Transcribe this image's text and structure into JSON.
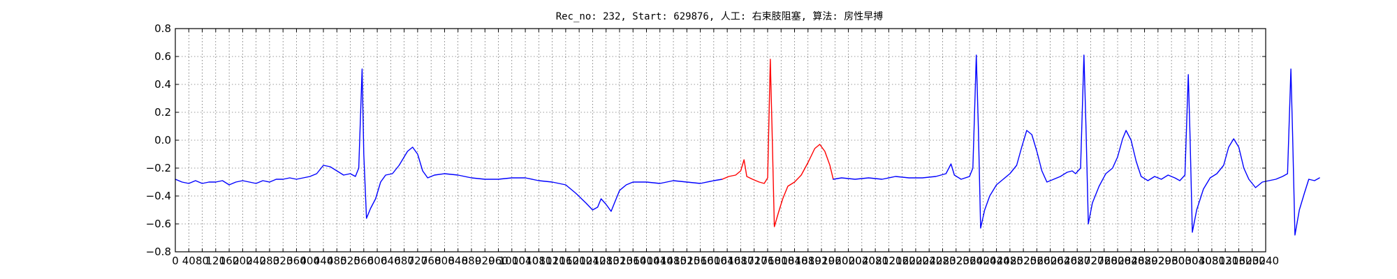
{
  "chart_data": {
    "type": "line",
    "title": "Rec_no: 232, Start: 629876, 人工: 右束肢阻塞, 算法: 房性早搏",
    "xlabel": "",
    "ylabel": "",
    "xlim": [
      0,
      3240
    ],
    "ylim": [
      -0.8,
      0.8
    ],
    "grid": true,
    "x_ticks": [
      0,
      40,
      80,
      120,
      160,
      200,
      240,
      280,
      320,
      360,
      400,
      440,
      480,
      520,
      560,
      600,
      640,
      680,
      720,
      760,
      800,
      840,
      880,
      920,
      960,
      1000,
      1040,
      1080,
      1120,
      1160,
      1200,
      1240,
      1280,
      1320,
      1360,
      1400,
      1440,
      1480,
      1520,
      1560,
      1600,
      1640,
      1680,
      1720,
      1760,
      1800,
      1840,
      1880,
      1920,
      1960,
      2000,
      2040,
      2080,
      2120,
      2160,
      2200,
      2240,
      2280,
      2320,
      2360,
      2400,
      2440,
      2480,
      2520,
      2560,
      2600,
      2640,
      2680,
      2720,
      2760,
      2800,
      2840,
      2880,
      2920,
      2960,
      3000,
      3040,
      3080,
      3120,
      3160,
      3200,
      3240
    ],
    "x_tick_labels": [
      "0",
      "40",
      "80",
      "120",
      "160",
      "200",
      "240",
      "280",
      "320",
      "360",
      "400",
      "440",
      "480",
      "520",
      "560",
      "600",
      "640",
      "680",
      "720",
      "760",
      "800",
      "840",
      "880",
      "920",
      "960",
      "1000",
      "1040",
      "1080",
      "1120",
      "1160",
      "1200",
      "1240",
      "1280",
      "1320",
      "1360",
      "1400",
      "1440",
      "1480",
      "1520",
      "1560",
      "1600",
      "1640",
      "1680",
      "1720",
      "1760",
      "1800",
      "1840",
      "1880",
      "1920",
      "1960",
      "2000",
      "2040",
      "2080",
      "2120",
      "2160",
      "2200",
      "2240",
      "2280",
      "2320",
      "2360",
      "2400",
      "2440",
      "2480",
      "2520",
      "2560",
      "2600",
      "2640",
      "2680",
      "2720",
      "2760",
      "2800",
      "2840",
      "2880",
      "2920",
      "2960",
      "3000",
      "3040",
      "3080",
      "3120",
      "3160",
      "3200",
      "3240"
    ],
    "y_ticks": [
      -0.8,
      -0.6,
      -0.4,
      -0.2,
      0.0,
      0.2,
      0.4,
      0.6,
      0.8
    ],
    "y_tick_labels": [
      "−0.8",
      "−0.6",
      "−0.4",
      "−0.2",
      "0.0",
      "0.2",
      "0.4",
      "0.6",
      "0.8"
    ],
    "series": [
      {
        "color": "#0000ff",
        "points": [
          [
            0,
            -0.28
          ],
          [
            20,
            -0.3
          ],
          [
            40,
            -0.31
          ],
          [
            60,
            -0.29
          ],
          [
            80,
            -0.31
          ],
          [
            100,
            -0.3
          ],
          [
            120,
            -0.3
          ],
          [
            140,
            -0.29
          ],
          [
            160,
            -0.32
          ],
          [
            180,
            -0.3
          ],
          [
            200,
            -0.29
          ],
          [
            220,
            -0.3
          ],
          [
            240,
            -0.31
          ],
          [
            260,
            -0.29
          ],
          [
            280,
            -0.3
          ],
          [
            300,
            -0.28
          ],
          [
            320,
            -0.28
          ],
          [
            340,
            -0.27
          ],
          [
            360,
            -0.28
          ],
          [
            380,
            -0.27
          ],
          [
            400,
            -0.26
          ],
          [
            420,
            -0.24
          ],
          [
            440,
            -0.18
          ],
          [
            460,
            -0.19
          ],
          [
            480,
            -0.22
          ],
          [
            500,
            -0.25
          ],
          [
            520,
            -0.24
          ],
          [
            535,
            -0.26
          ],
          [
            545,
            -0.2
          ],
          [
            555,
            0.51
          ],
          [
            560,
            -0.1
          ],
          [
            568,
            -0.56
          ],
          [
            580,
            -0.49
          ],
          [
            595,
            -0.42
          ],
          [
            610,
            -0.3
          ],
          [
            625,
            -0.25
          ],
          [
            645,
            -0.24
          ],
          [
            665,
            -0.18
          ],
          [
            690,
            -0.08
          ],
          [
            705,
            -0.05
          ],
          [
            720,
            -0.1
          ],
          [
            735,
            -0.22
          ],
          [
            750,
            -0.27
          ],
          [
            770,
            -0.25
          ],
          [
            800,
            -0.24
          ],
          [
            840,
            -0.25
          ],
          [
            880,
            -0.27
          ],
          [
            920,
            -0.28
          ],
          [
            960,
            -0.28
          ],
          [
            1000,
            -0.27
          ],
          [
            1040,
            -0.27
          ],
          [
            1080,
            -0.29
          ],
          [
            1120,
            -0.3
          ],
          [
            1160,
            -0.32
          ],
          [
            1190,
            -0.38
          ],
          [
            1220,
            -0.45
          ],
          [
            1240,
            -0.5
          ],
          [
            1255,
            -0.48
          ],
          [
            1265,
            -0.42
          ],
          [
            1280,
            -0.46
          ],
          [
            1295,
            -0.51
          ],
          [
            1305,
            -0.45
          ],
          [
            1320,
            -0.36
          ],
          [
            1340,
            -0.32
          ],
          [
            1360,
            -0.3
          ],
          [
            1400,
            -0.3
          ],
          [
            1440,
            -0.31
          ],
          [
            1480,
            -0.29
          ],
          [
            1520,
            -0.3
          ],
          [
            1560,
            -0.31
          ],
          [
            1600,
            -0.29
          ],
          [
            1625,
            -0.28
          ]
        ]
      },
      {
        "color": "#ff0000",
        "points": [
          [
            1625,
            -0.28
          ],
          [
            1645,
            -0.26
          ],
          [
            1665,
            -0.25
          ],
          [
            1680,
            -0.22
          ],
          [
            1690,
            -0.14
          ],
          [
            1698,
            -0.26
          ],
          [
            1715,
            -0.28
          ],
          [
            1735,
            -0.3
          ],
          [
            1750,
            -0.31
          ],
          [
            1760,
            -0.27
          ],
          [
            1768,
            0.58
          ],
          [
            1773,
            0.1
          ],
          [
            1780,
            -0.62
          ],
          [
            1792,
            -0.52
          ],
          [
            1805,
            -0.42
          ],
          [
            1820,
            -0.33
          ],
          [
            1840,
            -0.3
          ],
          [
            1860,
            -0.25
          ],
          [
            1880,
            -0.16
          ],
          [
            1900,
            -0.06
          ],
          [
            1915,
            -0.03
          ],
          [
            1930,
            -0.08
          ],
          [
            1945,
            -0.18
          ],
          [
            1955,
            -0.28
          ]
        ]
      },
      {
        "color": "#0000ff",
        "points": [
          [
            1955,
            -0.28
          ],
          [
            1980,
            -0.27
          ],
          [
            2020,
            -0.28
          ],
          [
            2060,
            -0.27
          ],
          [
            2100,
            -0.28
          ],
          [
            2140,
            -0.26
          ],
          [
            2180,
            -0.27
          ],
          [
            2220,
            -0.27
          ],
          [
            2260,
            -0.26
          ],
          [
            2290,
            -0.24
          ],
          [
            2305,
            -0.17
          ],
          [
            2315,
            -0.25
          ],
          [
            2335,
            -0.28
          ],
          [
            2360,
            -0.26
          ],
          [
            2370,
            -0.2
          ],
          [
            2380,
            0.61
          ],
          [
            2386,
            0.1
          ],
          [
            2393,
            -0.63
          ],
          [
            2405,
            -0.5
          ],
          [
            2420,
            -0.4
          ],
          [
            2440,
            -0.32
          ],
          [
            2460,
            -0.28
          ],
          [
            2480,
            -0.24
          ],
          [
            2500,
            -0.18
          ],
          [
            2515,
            -0.05
          ],
          [
            2530,
            0.07
          ],
          [
            2545,
            0.04
          ],
          [
            2560,
            -0.08
          ],
          [
            2575,
            -0.22
          ],
          [
            2590,
            -0.3
          ],
          [
            2610,
            -0.28
          ],
          [
            2630,
            -0.26
          ],
          [
            2650,
            -0.23
          ],
          [
            2665,
            -0.22
          ],
          [
            2675,
            -0.24
          ],
          [
            2690,
            -0.2
          ],
          [
            2700,
            0.61
          ],
          [
            2706,
            0.1
          ],
          [
            2713,
            -0.6
          ],
          [
            2725,
            -0.45
          ],
          [
            2745,
            -0.33
          ],
          [
            2765,
            -0.24
          ],
          [
            2785,
            -0.2
          ],
          [
            2800,
            -0.12
          ],
          [
            2815,
            0.01
          ],
          [
            2825,
            0.07
          ],
          [
            2840,
            0.0
          ],
          [
            2855,
            -0.15
          ],
          [
            2870,
            -0.26
          ],
          [
            2890,
            -0.29
          ],
          [
            2910,
            -0.26
          ],
          [
            2930,
            -0.28
          ],
          [
            2950,
            -0.25
          ],
          [
            2970,
            -0.27
          ],
          [
            2985,
            -0.29
          ],
          [
            3000,
            -0.25
          ],
          [
            3010,
            0.47
          ],
          [
            3015,
            0.05
          ],
          [
            3022,
            -0.66
          ],
          [
            3035,
            -0.5
          ],
          [
            3055,
            -0.35
          ],
          [
            3075,
            -0.27
          ],
          [
            3095,
            -0.24
          ],
          [
            3115,
            -0.18
          ],
          [
            3130,
            -0.05
          ],
          [
            3145,
            0.01
          ],
          [
            3160,
            -0.05
          ],
          [
            3175,
            -0.2
          ],
          [
            3190,
            -0.28
          ],
          [
            3210,
            -0.34
          ],
          [
            3230,
            -0.3
          ],
          [
            3250,
            -0.29
          ],
          [
            3270,
            -0.28
          ],
          [
            3290,
            -0.26
          ],
          [
            3305,
            -0.24
          ],
          [
            3315,
            0.51
          ],
          [
            3320,
            0.05
          ],
          [
            3327,
            -0.68
          ],
          [
            3340,
            -0.5
          ],
          [
            3355,
            -0.38
          ],
          [
            3368,
            -0.28
          ],
          [
            3385,
            -0.29
          ],
          [
            3400,
            -0.27
          ]
        ]
      }
    ]
  }
}
